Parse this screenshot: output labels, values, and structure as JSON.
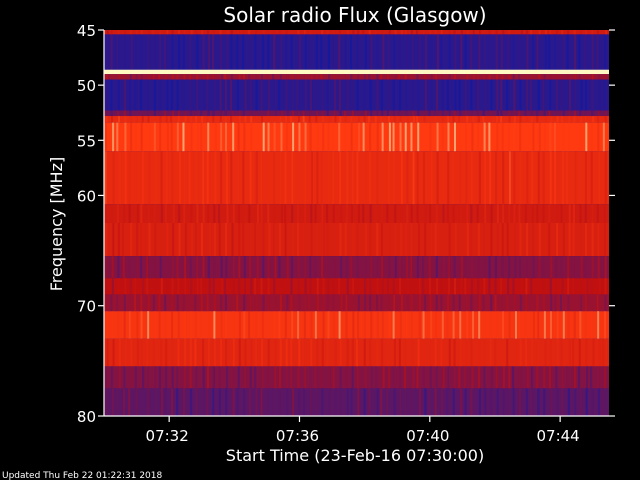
{
  "chart_data": {
    "type": "heatmap",
    "title": "Solar radio Flux (Glasgow)",
    "xlabel": "Start Time (23-Feb-16 07:30:00)",
    "ylabel": "Frequency [MHz]",
    "footer": "Updated Thu Feb 22 01:22:31 2018",
    "x_range_minutes": [
      0,
      15.5
    ],
    "x_ticks": [
      {
        "minutes": 2,
        "label": "07:32"
      },
      {
        "minutes": 6,
        "label": "07:36"
      },
      {
        "minutes": 10,
        "label": "07:40"
      },
      {
        "minutes": 14,
        "label": "07:44"
      }
    ],
    "y_range_mhz": [
      45,
      80
    ],
    "y_ticks": [
      {
        "value": 45,
        "label": "45"
      },
      {
        "value": 50,
        "label": "50"
      },
      {
        "value": 55,
        "label": "55"
      },
      {
        "value": 60,
        "label": "60"
      },
      {
        "value": 70,
        "label": "70"
      },
      {
        "value": 80,
        "label": "80"
      }
    ],
    "colors": {
      "background": "#000000",
      "low": "#0a1aa8",
      "mid": "#c01010",
      "high": "#ff3a10",
      "peak": "#fff8c0"
    },
    "bands": [
      {
        "from": 45.0,
        "to": 45.4,
        "level": 0.55
      },
      {
        "from": 45.4,
        "to": 48.6,
        "level": 0.08
      },
      {
        "from": 48.6,
        "to": 49.0,
        "level": 1.0
      },
      {
        "from": 49.0,
        "to": 49.5,
        "level": 0.35
      },
      {
        "from": 49.5,
        "to": 52.3,
        "level": 0.08
      },
      {
        "from": 52.3,
        "to": 52.8,
        "level": 0.25
      },
      {
        "from": 52.8,
        "to": 53.4,
        "level": 0.7
      },
      {
        "from": 53.4,
        "to": 56.0,
        "level": 0.85
      },
      {
        "from": 56.0,
        "to": 60.8,
        "level": 0.7
      },
      {
        "from": 60.8,
        "to": 62.5,
        "level": 0.55
      },
      {
        "from": 62.5,
        "to": 65.5,
        "level": 0.6
      },
      {
        "from": 65.5,
        "to": 67.5,
        "level": 0.3
      },
      {
        "from": 67.5,
        "to": 69.0,
        "level": 0.45
      },
      {
        "from": 69.0,
        "to": 70.5,
        "level": 0.35
      },
      {
        "from": 70.5,
        "to": 73.0,
        "level": 0.8
      },
      {
        "from": 73.0,
        "to": 75.5,
        "level": 0.65
      },
      {
        "from": 75.5,
        "to": 77.5,
        "level": 0.3
      },
      {
        "from": 77.5,
        "to": 80.0,
        "level": 0.2
      }
    ]
  }
}
